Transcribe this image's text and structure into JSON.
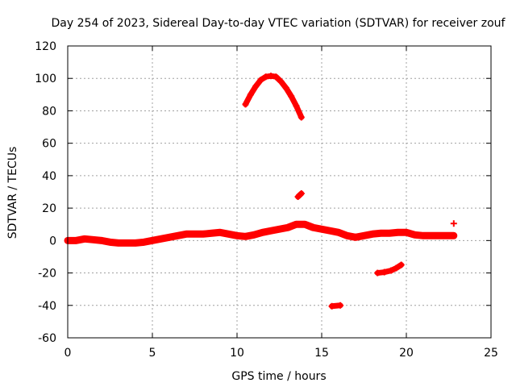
{
  "chart_data": {
    "type": "scatter",
    "title": "Day 254 of 2023, Sidereal Day-to-day VTEC variation (SDTVAR) for receiver zouf",
    "xlabel": "GPS time / hours",
    "ylabel": "SDTVAR / TECUs",
    "xlim": [
      0,
      25
    ],
    "ylim": [
      -60,
      120
    ],
    "xticks": [
      0,
      5,
      10,
      15,
      20,
      25
    ],
    "yticks": [
      -60,
      -40,
      -20,
      0,
      20,
      40,
      60,
      80,
      100,
      120
    ],
    "grid": true,
    "marker_color": "#ff0000",
    "series": [
      {
        "name": "main-band",
        "style": "band",
        "x": [
          0,
          0.5,
          1,
          1.5,
          2,
          2.5,
          3,
          3.5,
          4,
          4.5,
          5,
          5.5,
          6,
          6.5,
          7,
          7.5,
          8,
          8.5,
          9,
          9.5,
          10,
          10.5,
          11,
          11.5,
          12,
          12.5,
          13,
          13.5,
          14,
          14.5,
          15,
          15.5,
          16,
          16.5,
          17,
          17.5,
          18,
          18.5,
          19,
          19.5,
          20,
          20.5,
          21,
          21.5,
          22,
          22.5,
          22.8
        ],
        "y": [
          0,
          0,
          1,
          0.5,
          0,
          -1,
          -1.5,
          -1.5,
          -1.5,
          -1,
          0,
          1,
          2,
          3,
          4,
          4,
          4,
          4.5,
          5,
          4,
          3,
          2.5,
          3.5,
          5,
          6,
          7,
          8,
          10,
          10,
          8,
          7,
          6,
          5,
          3,
          2,
          3,
          4,
          4.5,
          4.5,
          5,
          5,
          3.5,
          3,
          3,
          3,
          3,
          3
        ]
      },
      {
        "name": "arc",
        "style": "line",
        "x": [
          10.5,
          10.8,
          11.1,
          11.4,
          11.7,
          12.0,
          12.3,
          12.6,
          12.9,
          13.2,
          13.5,
          13.8
        ],
        "y": [
          84,
          90,
          95,
          99,
          101,
          101.5,
          101,
          98,
          94,
          89,
          83,
          76
        ]
      },
      {
        "name": "short-segment-28",
        "style": "line",
        "x": [
          13.6,
          13.8
        ],
        "y": [
          27,
          29
        ]
      },
      {
        "name": "segment-minus-20",
        "style": "line",
        "x": [
          18.3,
          18.7,
          19.1,
          19.4,
          19.7
        ],
        "y": [
          -20,
          -19.5,
          -18.5,
          -17,
          -15
        ]
      },
      {
        "name": "segment-minus-40",
        "style": "line",
        "x": [
          15.6,
          16.1
        ],
        "y": [
          -40.5,
          -40
        ]
      },
      {
        "name": "isolated-point",
        "style": "points",
        "x": [
          22.8
        ],
        "y": [
          10.5
        ]
      }
    ]
  }
}
